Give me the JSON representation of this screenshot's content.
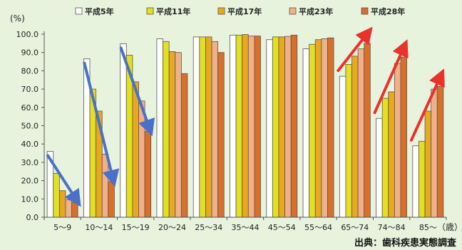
{
  "chart_data": {
    "type": "bar",
    "ylabel_unit": "(%)",
    "xlabel_unit": "（歳）",
    "ylim": [
      0,
      100
    ],
    "yticks": [
      "0.0",
      "10.0",
      "20.0",
      "30.0",
      "40.0",
      "50.0",
      "60.0",
      "70.0",
      "80.0",
      "90.0",
      "100.0"
    ],
    "categories": [
      "5～9",
      "10～14",
      "15～19",
      "20～24",
      "25～34",
      "35～44",
      "45～54",
      "55～64",
      "65～74",
      "74～84",
      "85～"
    ],
    "series": [
      {
        "name": "平成5年",
        "color": "#ffffff",
        "values": [
          36,
          86.5,
          94.8,
          97.5,
          98.5,
          99.5,
          97,
          92,
          77,
          54,
          39
        ]
      },
      {
        "name": "平成11年",
        "color": "#e4e020",
        "values": [
          24,
          70,
          88.5,
          96,
          98.5,
          99.5,
          98.5,
          94.5,
          83.5,
          65,
          41.5
        ]
      },
      {
        "name": "平成17年",
        "color": "#e8a820",
        "values": [
          14.5,
          58,
          74,
          90.5,
          98.5,
          99.8,
          98.5,
          97,
          88,
          68.5,
          58
        ]
      },
      {
        "name": "平成23年",
        "color": "#f2b088",
        "values": [
          9.5,
          34.5,
          63.5,
          90,
          96,
          99,
          98.8,
          97.5,
          92,
          84,
          70
        ]
      },
      {
        "name": "平成28年",
        "color": "#d8702a",
        "values": [
          8,
          19.5,
          47,
          78.5,
          90,
          99,
          99.5,
          98,
          95,
          87.5,
          71.5
        ]
      }
    ],
    "grid": false,
    "legend": "top",
    "arrows": [
      {
        "category": "5～9",
        "direction": "down",
        "color": "#4a70c8"
      },
      {
        "category": "10～14",
        "direction": "down",
        "color": "#4a70c8"
      },
      {
        "category": "15～19",
        "direction": "down",
        "color": "#4a70c8"
      },
      {
        "category": "65～74",
        "direction": "up",
        "color": "#e8322a"
      },
      {
        "category": "74～84",
        "direction": "up",
        "color": "#e8322a"
      },
      {
        "category": "85～",
        "direction": "up",
        "color": "#e8322a"
      }
    ]
  },
  "source_note": "出典：歯科疾患実態調査"
}
